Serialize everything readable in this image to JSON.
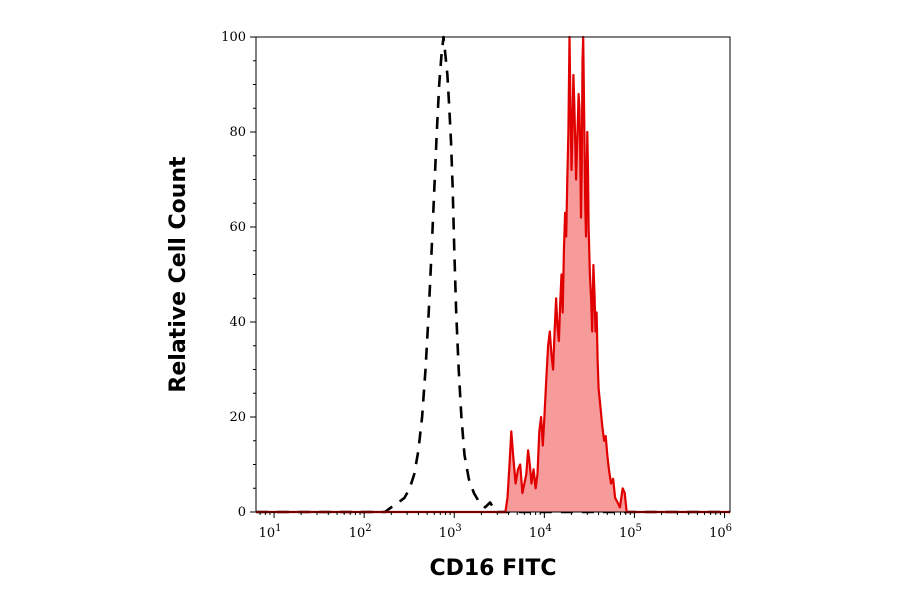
{
  "chart_data": {
    "type": "area",
    "xlabel": "CD16 FITC",
    "ylabel": "Relative Cell Count",
    "x_scale": "log",
    "xlim": [
      6.3,
      1150000
    ],
    "ylim": [
      0,
      100
    ],
    "x_ticks": [
      {
        "base": "10",
        "exp": "1",
        "value": 10
      },
      {
        "base": "10",
        "exp": "2",
        "value": 100
      },
      {
        "base": "10",
        "exp": "3",
        "value": 1000
      },
      {
        "base": "10",
        "exp": "4",
        "value": 10000
      },
      {
        "base": "10",
        "exp": "5",
        "value": 100000
      },
      {
        "base": "10",
        "exp": "6",
        "value": 1000000
      }
    ],
    "y_ticks": [
      {
        "label": "0",
        "value": 0
      },
      {
        "label": "20",
        "value": 20
      },
      {
        "label": "40",
        "value": 40
      },
      {
        "label": "60",
        "value": 60
      },
      {
        "label": "80",
        "value": 80
      },
      {
        "label": "100",
        "value": 100
      }
    ],
    "grid": false,
    "legend": "none",
    "series": [
      {
        "style": "dashed",
        "color": "#000000",
        "fill": "none",
        "points": [
          [
            6.3,
            0
          ],
          [
            170,
            0
          ],
          [
            200,
            1
          ],
          [
            240,
            2
          ],
          [
            280,
            3
          ],
          [
            320,
            5
          ],
          [
            360,
            8
          ],
          [
            400,
            13
          ],
          [
            440,
            20
          ],
          [
            480,
            30
          ],
          [
            520,
            42
          ],
          [
            560,
            55
          ],
          [
            600,
            68
          ],
          [
            640,
            80
          ],
          [
            680,
            90
          ],
          [
            720,
            96
          ],
          [
            760,
            100
          ],
          [
            800,
            96
          ],
          [
            840,
            92
          ],
          [
            880,
            85
          ],
          [
            920,
            78
          ],
          [
            960,
            68
          ],
          [
            1000,
            55
          ],
          [
            1050,
            42
          ],
          [
            1120,
            30
          ],
          [
            1200,
            20
          ],
          [
            1300,
            12
          ],
          [
            1450,
            7
          ],
          [
            1650,
            4
          ],
          [
            1900,
            2
          ],
          [
            2200,
            1
          ],
          [
            2500,
            2
          ],
          [
            2700,
            1
          ],
          [
            3000,
            0
          ],
          [
            1150000,
            0
          ]
        ]
      },
      {
        "style": "solid",
        "color": "#e00000",
        "fill": "#f79a9a",
        "points": [
          [
            6.3,
            0
          ],
          [
            3700,
            0
          ],
          [
            3900,
            3
          ],
          [
            4100,
            10
          ],
          [
            4300,
            17
          ],
          [
            4500,
            12
          ],
          [
            4800,
            6
          ],
          [
            5100,
            9
          ],
          [
            5400,
            10
          ],
          [
            5700,
            4
          ],
          [
            6000,
            6
          ],
          [
            6300,
            8
          ],
          [
            6600,
            13
          ],
          [
            6900,
            10
          ],
          [
            7200,
            6
          ],
          [
            7600,
            9
          ],
          [
            8000,
            5
          ],
          [
            8400,
            8
          ],
          [
            8800,
            17
          ],
          [
            9200,
            20
          ],
          [
            9600,
            14
          ],
          [
            10000,
            20
          ],
          [
            10500,
            28
          ],
          [
            11000,
            35
          ],
          [
            11500,
            38
          ],
          [
            12000,
            33
          ],
          [
            12500,
            30
          ],
          [
            13000,
            38
          ],
          [
            13500,
            45
          ],
          [
            14000,
            39
          ],
          [
            14500,
            36
          ],
          [
            15000,
            44
          ],
          [
            15500,
            50
          ],
          [
            16000,
            42
          ],
          [
            16500,
            55
          ],
          [
            17000,
            63
          ],
          [
            17500,
            58
          ],
          [
            18000,
            70
          ],
          [
            18500,
            80
          ],
          [
            19000,
            100
          ],
          [
            19500,
            85
          ],
          [
            20000,
            72
          ],
          [
            20500,
            80
          ],
          [
            21000,
            92
          ],
          [
            21500,
            86
          ],
          [
            22000,
            78
          ],
          [
            22500,
            70
          ],
          [
            23000,
            76
          ],
          [
            23500,
            82
          ],
          [
            24000,
            88
          ],
          [
            24500,
            85
          ],
          [
            25000,
            76
          ],
          [
            25500,
            62
          ],
          [
            26000,
            72
          ],
          [
            26500,
            95
          ],
          [
            27000,
            100
          ],
          [
            27500,
            88
          ],
          [
            28000,
            76
          ],
          [
            28500,
            64
          ],
          [
            29000,
            58
          ],
          [
            29500,
            70
          ],
          [
            30000,
            80
          ],
          [
            30500,
            72
          ],
          [
            31000,
            60
          ],
          [
            32000,
            50
          ],
          [
            33000,
            45
          ],
          [
            34000,
            38
          ],
          [
            35000,
            52
          ],
          [
            36000,
            46
          ],
          [
            37000,
            38
          ],
          [
            38000,
            42
          ],
          [
            39000,
            32
          ],
          [
            40000,
            26
          ],
          [
            42000,
            22
          ],
          [
            44000,
            18
          ],
          [
            46000,
            15
          ],
          [
            48000,
            16
          ],
          [
            50000,
            12
          ],
          [
            52000,
            9
          ],
          [
            55000,
            6
          ],
          [
            58000,
            7
          ],
          [
            61000,
            3
          ],
          [
            65000,
            2
          ],
          [
            69000,
            1
          ],
          [
            74000,
            5
          ],
          [
            78000,
            4
          ],
          [
            82000,
            0
          ],
          [
            1150000,
            0
          ]
        ]
      }
    ]
  }
}
